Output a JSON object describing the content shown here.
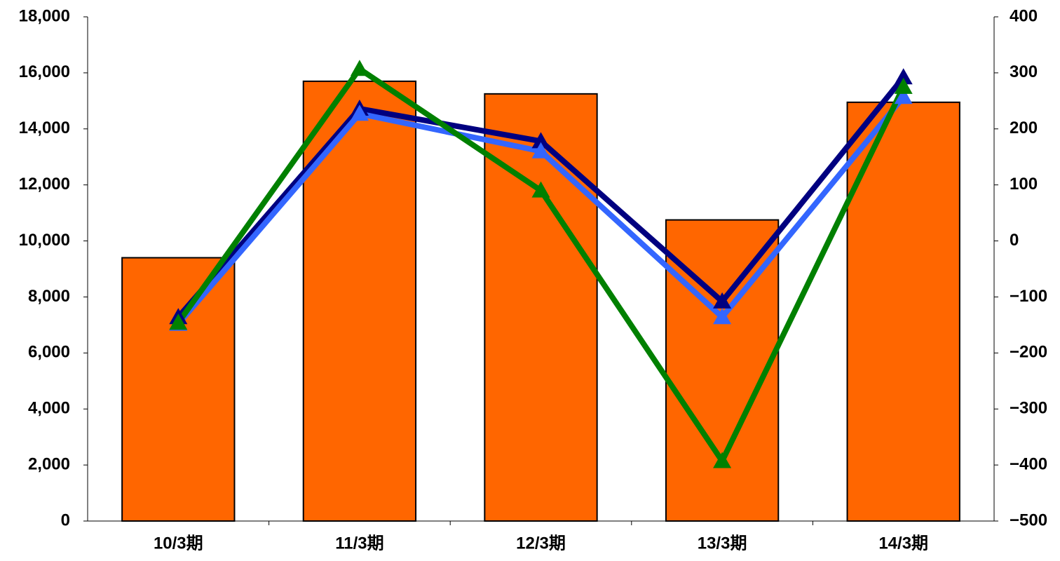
{
  "chart_data": {
    "type": "bar_line",
    "categories": [
      "10/3期",
      "11/3期",
      "12/3期",
      "13/3期",
      "14/3期"
    ],
    "values": [
      9400,
      15700,
      15250,
      10750,
      14950
    ],
    "color": "#ff6600",
    "series": [
      {
        "color": "#000080",
        "axis": "y2",
        "marker": "triangle",
        "values": [
          -136,
          236,
          178,
          -108,
          292
        ]
      },
      {
        "color": "#3366ff",
        "axis": "y2",
        "marker": "triangle",
        "values": [
          -148,
          227,
          160,
          -136,
          257
        ]
      },
      {
        "color": "#008000",
        "axis": "y2",
        "marker": "triangle",
        "values": [
          -146,
          307,
          90,
          -393,
          275
        ]
      }
    ],
    "ylim": [
      0,
      18000
    ],
    "yticks": [
      0,
      {
        "value": 2000,
        "label": "2,000"
      },
      {
        "value": 4000,
        "label": "4,000"
      },
      {
        "value": 6000,
        "label": "6,000"
      },
      {
        "value": 8000,
        "label": "8,000"
      },
      {
        "value": 10000,
        "label": "10,000"
      },
      {
        "value": 12000,
        "label": "12,000"
      },
      {
        "value": 14000,
        "label": "14,000"
      },
      {
        "value": 16000,
        "label": "16,000"
      },
      {
        "value": 18000,
        "label": "18,000"
      }
    ],
    "y2lim": [
      -500,
      400
    ],
    "y2ticks": [
      {
        "value": -500,
        "label": "−500"
      },
      {
        "value": -400,
        "label": "−400"
      },
      {
        "value": -300,
        "label": "−300"
      },
      {
        "value": -200,
        "label": "−200"
      },
      {
        "value": -100,
        "label": "−100"
      },
      0,
      100,
      200,
      300,
      400
    ],
    "y2_negative_color": "#ff0000",
    "grid": false
  }
}
